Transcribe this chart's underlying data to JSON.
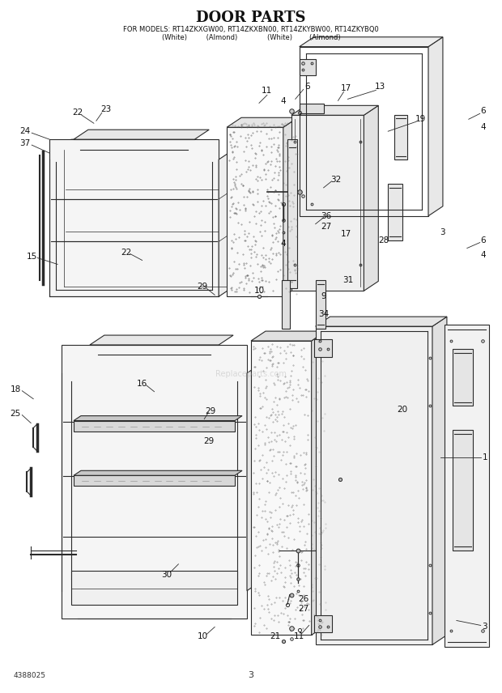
{
  "title": "DOOR PARTS",
  "subtitle_line1": "FOR MODELS: RT14ZKXGW00, RT14ZKXBN00, RT14ZKYBW00, RT14ZKYBQ0",
  "subtitle_line2": "(White)         (Almond)              (White)        (Almond)",
  "bg_color": "#ffffff",
  "diagram_color": "#2a2a2a",
  "watermark": "Replaceparts.com",
  "part_number": "4388025",
  "page_number": "3",
  "title_fontsize": 13,
  "sub_fontsize": 6,
  "label_fontsize": 7.5
}
